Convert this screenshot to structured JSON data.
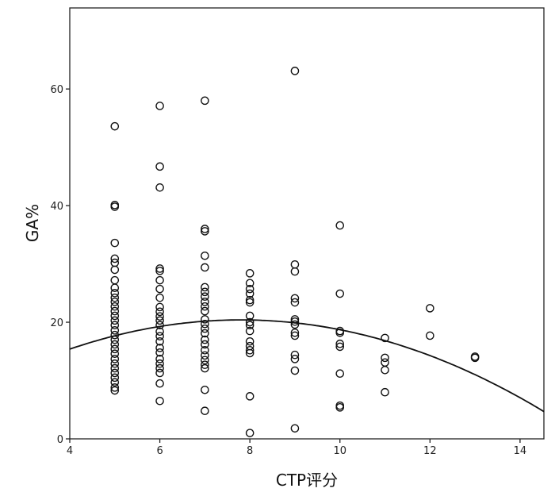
{
  "chart_data": {
    "type": "scatter",
    "title": "",
    "xlabel": "CTP评分",
    "ylabel": "GA%",
    "xlim": [
      4,
      14.53
    ],
    "ylim": [
      0,
      73.9
    ],
    "xticks": [
      "4",
      "6",
      "8",
      "10",
      "12",
      "14"
    ],
    "yticks": [
      "0",
      "20",
      "40",
      "60"
    ],
    "grid": false,
    "marker": "open-circle",
    "points": [
      [
        5,
        53.6
      ],
      [
        5,
        40.1
      ],
      [
        5,
        39.8
      ],
      [
        5,
        33.6
      ],
      [
        5,
        30.9
      ],
      [
        5,
        30.2
      ],
      [
        5,
        29
      ],
      [
        5,
        27.2
      ],
      [
        5,
        25.9
      ],
      [
        5,
        25
      ],
      [
        5,
        24.2
      ],
      [
        5,
        23.5
      ],
      [
        5,
        22.7
      ],
      [
        5,
        21.9
      ],
      [
        5,
        21.1
      ],
      [
        5,
        20.3
      ],
      [
        5,
        19.5
      ],
      [
        5,
        18.6
      ],
      [
        5,
        17.8
      ],
      [
        5,
        17
      ],
      [
        5,
        16.2
      ],
      [
        5,
        15.4
      ],
      [
        5,
        14.6
      ],
      [
        5,
        13.7
      ],
      [
        5,
        12.9
      ],
      [
        5,
        12.1
      ],
      [
        5,
        11.3
      ],
      [
        5,
        10.5
      ],
      [
        5,
        9.7
      ],
      [
        5,
        8.8
      ],
      [
        5,
        8.3
      ],
      [
        6,
        57.1
      ],
      [
        6,
        46.7
      ],
      [
        6,
        43.1
      ],
      [
        6,
        29.2
      ],
      [
        6,
        28.8
      ],
      [
        6,
        27.2
      ],
      [
        6,
        25.7
      ],
      [
        6,
        24.2
      ],
      [
        6,
        22.6
      ],
      [
        6,
        21.8
      ],
      [
        6,
        21
      ],
      [
        6,
        20.3
      ],
      [
        6,
        19.5
      ],
      [
        6,
        18.4
      ],
      [
        6,
        17.6
      ],
      [
        6,
        16.7
      ],
      [
        6,
        15.6
      ],
      [
        6,
        14.8
      ],
      [
        6,
        13.7
      ],
      [
        6,
        12.9
      ],
      [
        6,
        12.1
      ],
      [
        6,
        11.3
      ],
      [
        6,
        9.5
      ],
      [
        6,
        6.5
      ],
      [
        7,
        58
      ],
      [
        7,
        36
      ],
      [
        7,
        35.6
      ],
      [
        7,
        31.4
      ],
      [
        7,
        29.4
      ],
      [
        7,
        26
      ],
      [
        7,
        25.2
      ],
      [
        7,
        24.4
      ],
      [
        7,
        23.5
      ],
      [
        7,
        22.7
      ],
      [
        7,
        21.9
      ],
      [
        7,
        20.5
      ],
      [
        7,
        19.7
      ],
      [
        7,
        18.9
      ],
      [
        7,
        18.1
      ],
      [
        7,
        17
      ],
      [
        7,
        16.2
      ],
      [
        7,
        15.2
      ],
      [
        7,
        14.3
      ],
      [
        7,
        13.5
      ],
      [
        7,
        12.7
      ],
      [
        7,
        12.1
      ],
      [
        7,
        8.4
      ],
      [
        7,
        4.8
      ],
      [
        8,
        28.4
      ],
      [
        8,
        26.7
      ],
      [
        8,
        25.7
      ],
      [
        8,
        24.9
      ],
      [
        8,
        23.8
      ],
      [
        8,
        23.4
      ],
      [
        8,
        21.1
      ],
      [
        8,
        20
      ],
      [
        8,
        19.5
      ],
      [
        8,
        18.5
      ],
      [
        8,
        16.7
      ],
      [
        8,
        15.9
      ],
      [
        8,
        15.2
      ],
      [
        8,
        14.7
      ],
      [
        8,
        7.3
      ],
      [
        8,
        1
      ],
      [
        9,
        63.1
      ],
      [
        9,
        29.9
      ],
      [
        9,
        28.7
      ],
      [
        9,
        24.1
      ],
      [
        9,
        23.4
      ],
      [
        9,
        20.5
      ],
      [
        9,
        20.1
      ],
      [
        9,
        19.6
      ],
      [
        9,
        18.2
      ],
      [
        9,
        17.7
      ],
      [
        9,
        14.4
      ],
      [
        9,
        13.7
      ],
      [
        9,
        11.7
      ],
      [
        9,
        1.8
      ],
      [
        10,
        36.6
      ],
      [
        10,
        24.9
      ],
      [
        10,
        18.5
      ],
      [
        10,
        18.2
      ],
      [
        10,
        16.3
      ],
      [
        10,
        15.8
      ],
      [
        10,
        11.2
      ],
      [
        10,
        5.7
      ],
      [
        10,
        5.4
      ],
      [
        11,
        17.3
      ],
      [
        11,
        13.9
      ],
      [
        11,
        13.1
      ],
      [
        11,
        11.8
      ],
      [
        11,
        8
      ],
      [
        12,
        22.4
      ],
      [
        12,
        17.7
      ],
      [
        13,
        14.1
      ],
      [
        13,
        13.9
      ]
    ],
    "fit": {
      "type": "quadratic",
      "coefficients": {
        "a": -0.347,
        "b": 5.413,
        "c": -0.71
      }
    }
  }
}
